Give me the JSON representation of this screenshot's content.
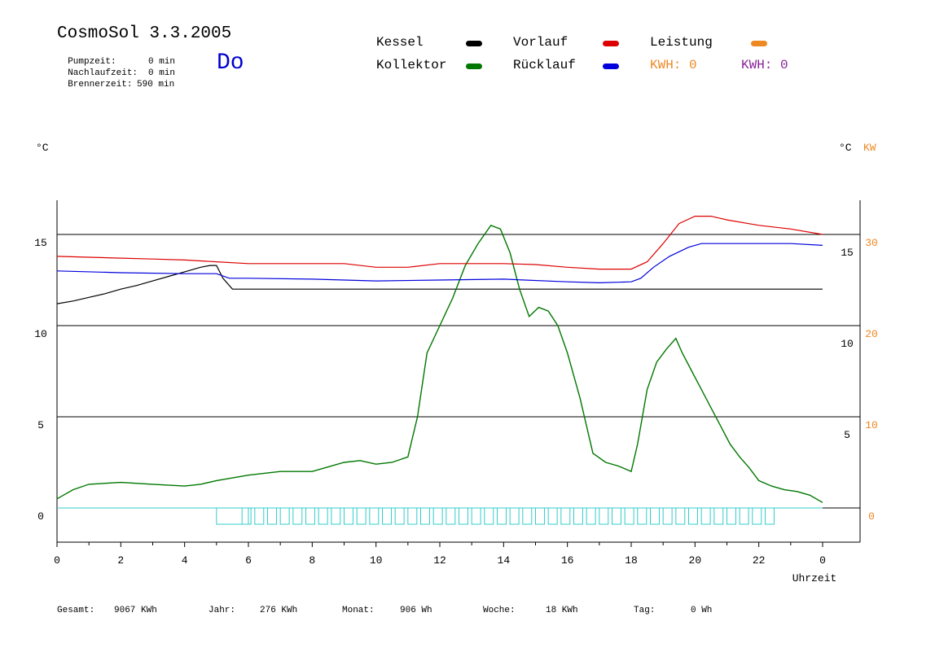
{
  "header": {
    "title": "CosmoSol 3.3.2005",
    "day": "Do",
    "pump_label": "Pumpzeit:",
    "pump_value": "0 min",
    "overrun_label": "Nachlaufzeit:",
    "overrun_value": "0 min",
    "burner_label": "Brennerzeit:",
    "burner_value": "590 min"
  },
  "legend": {
    "kessel": "Kessel",
    "kollektor": "Kollektor",
    "vorlauf": "Vorlauf",
    "ruecklauf": "Rücklauf",
    "leistung": "Leistung",
    "kwh1": "KWH: 0",
    "kwh2": "KWH: 0",
    "colors": {
      "kessel": "#000000",
      "kollektor": "#007700",
      "vorlauf": "#dd0000",
      "ruecklauf": "#0000dd",
      "leistung": "#ee8822",
      "kwh2": "#882299",
      "pump": "#33cccc"
    }
  },
  "units": {
    "left": "°C",
    "right_c": "°C",
    "right_kw": "KW"
  },
  "footer": {
    "gesamt_label": "Gesamt:",
    "gesamt_value": "9067 KWh",
    "jahr_label": "Jahr:",
    "jahr_value": "276 KWh",
    "monat_label": "Monat:",
    "monat_value": "906 Wh",
    "woche_label": "Woche:",
    "woche_value": "18 KWh",
    "tag_label": "Tag:",
    "tag_value": "0 Wh"
  },
  "chart_data": {
    "type": "line",
    "xlabel": "Uhrzeit",
    "ylabel": "°C",
    "xlim": [
      0,
      24
    ],
    "ylim": [
      -1,
      17
    ],
    "x_ticks": [
      "0",
      "2",
      "4",
      "6",
      "8",
      "10",
      "12",
      "14",
      "16",
      "18",
      "20",
      "22",
      "0"
    ],
    "y_ticks_left": [
      "0",
      "5",
      "10",
      "15"
    ],
    "y_ticks_right_c": [
      "5",
      "10",
      "15"
    ],
    "y_ticks_right_kw": [
      "0",
      "10",
      "20",
      "30"
    ],
    "grid": "horizontal",
    "series": [
      {
        "name": "Kessel",
        "color": "#000000",
        "x": [
          0,
          0.5,
          1,
          1.5,
          2,
          2.5,
          3,
          3.5,
          4,
          4.5,
          4.8,
          5.0,
          5.2,
          5.5,
          6,
          8,
          10,
          12,
          14,
          16,
          18,
          20,
          22,
          24
        ],
        "y": [
          11.2,
          11.35,
          11.55,
          11.75,
          12.0,
          12.2,
          12.45,
          12.7,
          12.95,
          13.2,
          13.3,
          13.3,
          12.6,
          12.0,
          12.0,
          12.0,
          12.0,
          12.0,
          12.0,
          12.0,
          12.0,
          12.0,
          12.0,
          12.0
        ]
      },
      {
        "name": "Kollektor",
        "color": "#007700",
        "x": [
          0,
          0.5,
          1,
          2,
          3,
          4,
          4.5,
          5,
          6,
          7,
          8,
          9,
          9.5,
          10,
          10.5,
          11,
          11.3,
          11.6,
          12,
          12.4,
          12.8,
          13.2,
          13.6,
          13.9,
          14.2,
          14.5,
          14.8,
          15.1,
          15.4,
          15.7,
          16,
          16.4,
          16.8,
          17.2,
          17.6,
          18,
          18.2,
          18.5,
          18.8,
          19.1,
          19.4,
          19.6,
          19.9,
          20.2,
          20.5,
          20.8,
          21.1,
          21.4,
          21.7,
          22,
          22.4,
          22.8,
          23.2,
          23.6,
          24
        ],
        "y": [
          0.5,
          1.0,
          1.3,
          1.4,
          1.3,
          1.2,
          1.3,
          1.5,
          1.8,
          2.0,
          2.0,
          2.5,
          2.6,
          2.4,
          2.5,
          2.8,
          5.0,
          8.5,
          10.0,
          11.5,
          13.3,
          14.5,
          15.5,
          15.3,
          14.0,
          12.0,
          10.5,
          11.0,
          10.8,
          10.0,
          8.5,
          6.0,
          3.0,
          2.5,
          2.3,
          2.0,
          3.5,
          6.5,
          8.0,
          8.7,
          9.3,
          8.5,
          7.5,
          6.5,
          5.5,
          4.5,
          3.5,
          2.8,
          2.2,
          1.5,
          1.2,
          1.0,
          0.9,
          0.7,
          0.3
        ]
      },
      {
        "name": "Vorlauf",
        "color": "#dd0000",
        "x": [
          0,
          1,
          2,
          3,
          4,
          5,
          6,
          8,
          9,
          10,
          11,
          12,
          13,
          14,
          15,
          16,
          17,
          18,
          18.5,
          19,
          19.5,
          20,
          20.5,
          21,
          22,
          23,
          24
        ],
        "y": [
          13.8,
          13.75,
          13.7,
          13.65,
          13.6,
          13.5,
          13.4,
          13.4,
          13.4,
          13.2,
          13.2,
          13.4,
          13.4,
          13.4,
          13.35,
          13.2,
          13.1,
          13.1,
          13.5,
          14.5,
          15.6,
          16.0,
          16.0,
          15.8,
          15.5,
          15.3,
          15.0
        ]
      },
      {
        "name": "Rücklauf",
        "color": "#0000dd",
        "x": [
          0,
          2,
          4,
          5,
          5.4,
          6,
          8,
          10,
          12,
          14,
          16,
          17,
          18,
          18.3,
          18.7,
          19.2,
          19.8,
          20.2,
          21,
          22,
          23,
          24
        ],
        "y": [
          13.0,
          12.9,
          12.85,
          12.85,
          12.6,
          12.6,
          12.55,
          12.45,
          12.5,
          12.55,
          12.4,
          12.35,
          12.4,
          12.6,
          13.2,
          13.8,
          14.3,
          14.5,
          14.5,
          14.5,
          14.5,
          14.4
        ]
      }
    ],
    "pump_blocks": {
      "name": "Pumpe",
      "color": "#33cccc",
      "start": 5.0,
      "end": 22.6,
      "count": 44
    }
  }
}
